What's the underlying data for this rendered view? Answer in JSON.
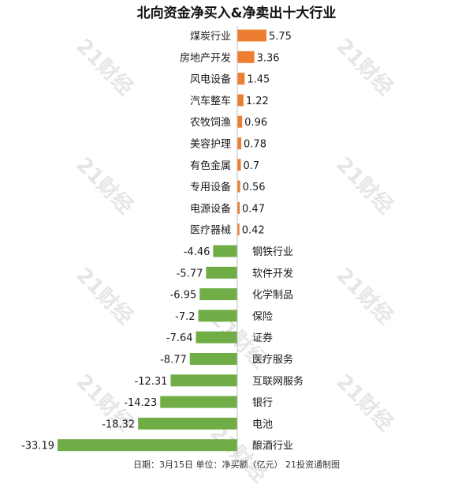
{
  "watermark_text": "21财经",
  "footer": "日期：3月15日 单位：净买额（亿元） 21投资通制图",
  "colors": {
    "positive": "#ed7d31",
    "negative": "#70ad47",
    "axis": "#bfbfbf"
  },
  "chart_data": {
    "type": "bar",
    "orientation": "horizontal",
    "title": "北向资金净买入&净卖出十大行业",
    "categories": [
      "煤炭行业",
      "房地产开发",
      "风电设备",
      "汽车整车",
      "农牧饲渔",
      "美容护理",
      "有色金属",
      "专用设备",
      "电源设备",
      "医疗器械",
      "钢铁行业",
      "软件开发",
      "化学制品",
      "保险",
      "证券",
      "医疗服务",
      "互联网服务",
      "银行",
      "电池",
      "酿酒行业"
    ],
    "values": [
      5.75,
      3.36,
      1.45,
      1.22,
      0.96,
      0.78,
      0.7,
      0.56,
      0.47,
      0.42,
      -4.46,
      -5.77,
      -6.95,
      -7.2,
      -7.64,
      -8.77,
      -12.31,
      -14.23,
      -18.32,
      -33.19
    ],
    "value_labels": [
      "5.75",
      "3.36",
      "1.45",
      "1.22",
      "0.96",
      "0.78",
      "0.7",
      "0.56",
      "0.47",
      "0.42",
      "-4.46",
      "-5.77",
      "-6.95",
      "-7.2",
      "-7.64",
      "-8.77",
      "-12.31",
      "-14.23",
      "-18.32",
      "-33.19"
    ],
    "xlim": [
      -33.19,
      5.75
    ],
    "grid": false,
    "legend": "none"
  }
}
